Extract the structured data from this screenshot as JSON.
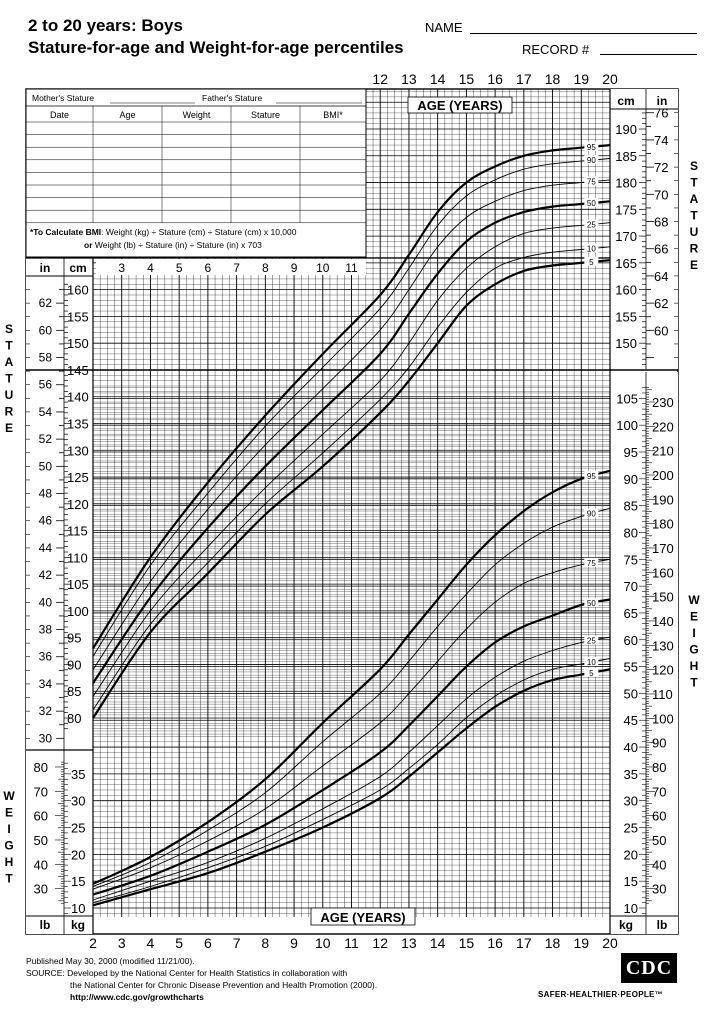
{
  "header": {
    "title_line1": "2 to 20 years: Boys",
    "title_line2": "Stature-for-age and Weight-for-age percentiles",
    "name_label": "NAME",
    "record_label": "RECORD #"
  },
  "record_table": {
    "mothers_stature": "Mother's Stature",
    "fathers_stature": "Father's Stature",
    "columns": [
      "Date",
      "Age",
      "Weight",
      "Stature",
      "BMI*"
    ],
    "bmi_note_bold": "*To Calculate BMI",
    "bmi_note_line1": ": Weight (kg) ÷ Stature (cm) ÷ Stature (cm) x 10,000",
    "bmi_note_line2": "or Weight (lb) ÷ Stature (in) ÷ Stature (in) x 703"
  },
  "side_labels": {
    "stature_left": "STATURE",
    "stature_right": "STATURE",
    "weight_left": "WEIGHT",
    "weight_right": "WEIGHT"
  },
  "footer": {
    "published": "Published May 30, 2000 (modified 11/21/00).",
    "source_line1": "SOURCE: Developed by the National Center for Health Statistics in collaboration with",
    "source_line2": "the National Center for Chronic Disease Prevention and Health Promotion (2000).",
    "url": "http://www.cdc.gov/growthcharts",
    "logo": "CDC",
    "tagline": "SAFER·HEALTHIER·PEOPLE™"
  },
  "chart_data": [
    {
      "type": "line",
      "name": "Stature-for-age",
      "xlabel": "AGE (YEARS)",
      "ylabel": "STATURE",
      "units": [
        "cm",
        "in"
      ],
      "xlim": [
        2,
        20
      ],
      "ylim": [
        77,
        197
      ],
      "x_ticks": [
        2,
        3,
        4,
        5,
        6,
        7,
        8,
        9,
        10,
        11,
        12,
        13,
        14,
        15,
        16,
        17,
        18,
        19,
        20
      ],
      "y_ticks_cm_left": [
        80,
        85,
        90,
        95,
        100,
        105,
        110,
        115,
        120,
        125,
        130,
        135,
        140,
        145,
        150,
        155,
        160
      ],
      "y_ticks_in_left": [
        30,
        32,
        34,
        36,
        38,
        40,
        42,
        44,
        46,
        48,
        50,
        52,
        54,
        56,
        58,
        60,
        62
      ],
      "y_ticks_cm_right": [
        150,
        155,
        160,
        165,
        170,
        175,
        180,
        185,
        190
      ],
      "y_ticks_in_right": [
        60,
        62,
        64,
        66,
        68,
        70,
        72,
        74,
        76
      ],
      "x": [
        2,
        4,
        6,
        8,
        10,
        12,
        13,
        14,
        15,
        16,
        17,
        18,
        19,
        20
      ],
      "series": [
        {
          "name": "5",
          "bold": true,
          "values": [
            80,
            96,
            107,
            118,
            127,
            137,
            143,
            150,
            157,
            161,
            163.5,
            164.5,
            165,
            165.5
          ]
        },
        {
          "name": "10",
          "bold": false,
          "values": [
            81.5,
            97.5,
            109,
            120,
            129.5,
            139.5,
            145.5,
            153,
            159.5,
            164,
            166,
            167,
            167.5,
            168
          ]
        },
        {
          "name": "25",
          "bold": false,
          "values": [
            84,
            100,
            112,
            123,
            133,
            143,
            150,
            158,
            164,
            168,
            170.5,
            171.5,
            172,
            172.5
          ]
        },
        {
          "name": "50",
          "bold": true,
          "values": [
            86.5,
            102.5,
            115.5,
            127,
            137.5,
            148,
            155.5,
            163,
            169,
            172.5,
            174.5,
            175.5,
            176,
            176.5
          ]
        },
        {
          "name": "75",
          "bold": false,
          "values": [
            89,
            105.5,
            119,
            131,
            141.5,
            152.5,
            160,
            168,
            173.5,
            176.5,
            178.5,
            179.5,
            180,
            180.5
          ]
        },
        {
          "name": "90",
          "bold": false,
          "values": [
            91.5,
            108.5,
            122,
            134.5,
            145.5,
            156.5,
            164,
            172,
            177.5,
            180.5,
            182.5,
            183.5,
            184,
            184.5
          ]
        },
        {
          "name": "95",
          "bold": true,
          "values": [
            93,
            110,
            124,
            136.5,
            148,
            159,
            166.5,
            174.5,
            180,
            183,
            185,
            186,
            186.5,
            187
          ]
        }
      ]
    },
    {
      "type": "line",
      "name": "Weight-for-age",
      "xlabel": "AGE (YEARS)",
      "ylabel": "WEIGHT",
      "units": [
        "kg",
        "lb"
      ],
      "xlim": [
        2,
        20
      ],
      "ylim": [
        7,
        107
      ],
      "y_ticks_kg_left": [
        10,
        15,
        20,
        25,
        30,
        35
      ],
      "y_ticks_lb_left": [
        30,
        40,
        50,
        60,
        70,
        80
      ],
      "y_ticks_kg_right": [
        10,
        15,
        20,
        25,
        30,
        35,
        40,
        45,
        50,
        55,
        60,
        65,
        70,
        75,
        80,
        85,
        90,
        95,
        100,
        105
      ],
      "y_ticks_lb_right": [
        30,
        40,
        50,
        60,
        70,
        80,
        90,
        100,
        110,
        120,
        130,
        140,
        150,
        160,
        170,
        180,
        190,
        200,
        210,
        220,
        230
      ],
      "x": [
        2,
        4,
        6,
        8,
        10,
        12,
        13,
        14,
        15,
        16,
        17,
        18,
        19,
        20
      ],
      "series": [
        {
          "name": "5",
          "bold": true,
          "values": [
            10.5,
            13.5,
            16.5,
            20.5,
            25,
            30.5,
            34.5,
            39,
            43.5,
            47.5,
            50.5,
            52.5,
            53.5,
            54.5
          ]
        },
        {
          "name": "10",
          "bold": false,
          "values": [
            11,
            14,
            17.5,
            21.5,
            26.5,
            32,
            36,
            40.5,
            45.5,
            49.5,
            52.5,
            54.5,
            55.5,
            56.5
          ]
        },
        {
          "name": "25",
          "bold": false,
          "values": [
            11.5,
            15,
            18.5,
            23,
            28.5,
            34.5,
            39,
            44,
            49,
            53,
            56,
            58,
            59.5,
            60.5
          ]
        },
        {
          "name": "50",
          "bold": true,
          "values": [
            12.5,
            16,
            20.5,
            25.5,
            32,
            39,
            44,
            49.5,
            55,
            59.5,
            62.5,
            64.5,
            66.5,
            67.5
          ]
        },
        {
          "name": "75",
          "bold": false,
          "values": [
            13.5,
            17.5,
            22.5,
            28.5,
            36.5,
            44.5,
            50,
            56,
            62,
            67,
            70.5,
            72.5,
            74,
            75
          ]
        },
        {
          "name": "90",
          "bold": false,
          "values": [
            14,
            18.5,
            24.5,
            31.5,
            41,
            50,
            56,
            62.5,
            68.5,
            74,
            78,
            81,
            83,
            84.5
          ]
        },
        {
          "name": "95",
          "bold": true,
          "values": [
            14.5,
            19.5,
            26,
            34,
            44.5,
            54.5,
            61,
            67.5,
            74,
            79.5,
            84,
            87.5,
            90,
            91.5
          ]
        }
      ]
    }
  ]
}
